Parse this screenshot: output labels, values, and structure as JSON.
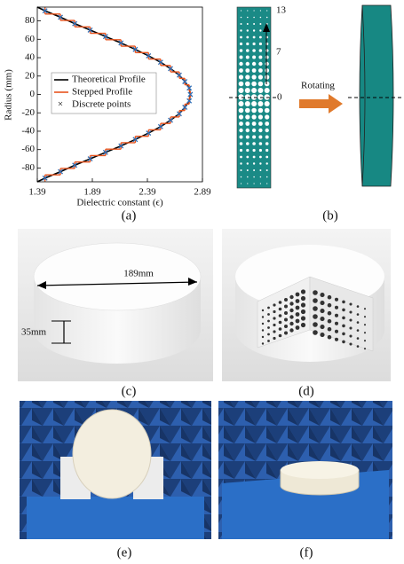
{
  "chart_data": {
    "type": "line",
    "x_label": "Dielectric constant (ϵ)",
    "y_label": "Radius (mm)",
    "xlim": [
      1.39,
      2.89
    ],
    "xticks": [
      1.39,
      1.89,
      2.39,
      2.89
    ],
    "ylim": [
      -95,
      95
    ],
    "yticks": [
      -80,
      -60,
      -40,
      -20,
      0,
      20,
      40,
      60,
      80
    ],
    "legend": "center",
    "series": [
      {
        "name": "Theoretical Profile",
        "color": "#000000",
        "style": "line",
        "x": [
          1.39,
          1.46,
          1.6,
          1.73,
          1.87,
          2.01,
          2.15,
          2.28,
          2.4,
          2.51,
          2.6,
          2.68,
          2.73,
          2.77,
          2.78,
          2.77,
          2.73,
          2.68,
          2.6,
          2.51,
          2.4,
          2.28,
          2.15,
          2.01,
          1.87,
          1.73,
          1.6,
          1.46,
          1.39
        ],
        "values": [
          -95,
          -91,
          -84,
          -77,
          -70,
          -63,
          -56,
          -49,
          -42,
          -35,
          -28,
          -21,
          -14,
          -7,
          0,
          7,
          14,
          21,
          28,
          35,
          42,
          49,
          56,
          63,
          70,
          77,
          84,
          91,
          95
        ]
      },
      {
        "name": "Stepped Profile",
        "color": "#e8541e",
        "style": "step",
        "x": [
          1.46,
          1.6,
          1.73,
          1.87,
          2.01,
          2.15,
          2.28,
          2.4,
          2.51,
          2.6,
          2.68,
          2.73,
          2.77,
          2.78,
          2.77,
          2.73,
          2.68,
          2.6,
          2.51,
          2.4,
          2.28,
          2.15,
          2.01,
          1.87,
          1.73,
          1.6,
          1.46
        ],
        "values": [
          -91,
          -84,
          -77,
          -70,
          -63,
          -56,
          -49,
          -42,
          -35,
          -28,
          -21,
          -14,
          -7,
          0,
          7,
          14,
          21,
          28,
          35,
          42,
          49,
          56,
          63,
          70,
          77,
          84,
          91
        ]
      },
      {
        "name": "Discrete points",
        "color": "#2f6db5",
        "style": "marker",
        "x": [
          1.46,
          1.6,
          1.73,
          1.87,
          2.01,
          2.15,
          2.28,
          2.4,
          2.51,
          2.6,
          2.68,
          2.73,
          2.77,
          2.78,
          2.77,
          2.73,
          2.68,
          2.6,
          2.51,
          2.4,
          2.28,
          2.15,
          2.01,
          1.87,
          1.73,
          1.6,
          1.46
        ],
        "values": [
          -91,
          -84,
          -77,
          -70,
          -63,
          -56,
          -49,
          -42,
          -35,
          -28,
          -21,
          -14,
          -7,
          0,
          7,
          14,
          21,
          28,
          35,
          42,
          49,
          56,
          63,
          70,
          77,
          84,
          91
        ]
      }
    ]
  },
  "figure": {
    "captions": [
      "(a)",
      "(b)",
      "(c)",
      "(d)",
      "(e)",
      "(f)"
    ],
    "panel_b": {
      "row_labels": [
        "13",
        "7",
        "0"
      ],
      "arrow_label": "Rotating"
    },
    "panel_c": {
      "diameter_label": "189mm",
      "height_label": "35mm"
    }
  }
}
